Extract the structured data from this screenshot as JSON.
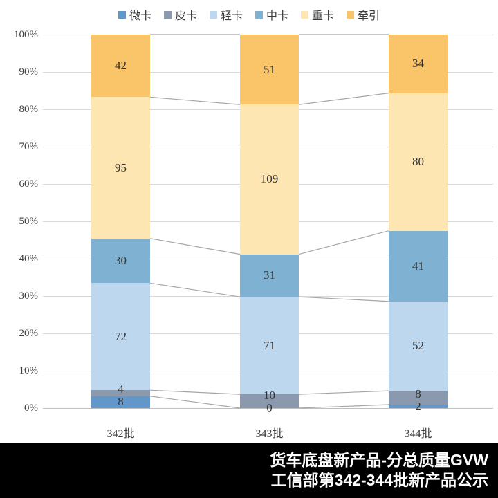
{
  "chart_data": {
    "type": "bar",
    "subtype": "stacked-100-percent-column",
    "title": "",
    "categories": [
      "342批",
      "343批",
      "344批"
    ],
    "series": [
      {
        "name": "微卡",
        "color": "#6297C9",
        "values": [
          8,
          0,
          2
        ]
      },
      {
        "name": "皮卡",
        "color": "#8A99AE",
        "values": [
          4,
          10,
          8
        ]
      },
      {
        "name": "轻卡",
        "color": "#BDD7EE",
        "values": [
          72,
          71,
          52
        ]
      },
      {
        "name": "中卡",
        "color": "#7FB1D2",
        "values": [
          30,
          31,
          41
        ]
      },
      {
        "name": "重卡",
        "color": "#FDE6B2",
        "values": [
          95,
          109,
          80
        ]
      },
      {
        "name": "牵引",
        "color": "#FAC469",
        "values": [
          42,
          51,
          34
        ]
      }
    ],
    "y_axis": {
      "min": 0,
      "max": 100,
      "step": 10,
      "tick_labels": [
        "0%",
        "10%",
        "20%",
        "30%",
        "40%",
        "50%",
        "60%",
        "70%",
        "80%",
        "90%",
        "100%"
      ]
    },
    "grid": true,
    "legend_position": "top",
    "series_lines": true,
    "data_labels": true
  },
  "colors": {
    "gridline": "#D9D9D9",
    "axis_line": "#BFBFBF",
    "series_line": "#A6A6A6",
    "axis_text": "#404040",
    "label_text": "#333333",
    "background": "#FFFFFF",
    "footer_bg": "#000000",
    "footer_text": "#FFFFFF"
  },
  "footer": {
    "line1": "货车底盘新产品-分总质量GVW",
    "line2": "工信部第342-344批新产品公示"
  }
}
